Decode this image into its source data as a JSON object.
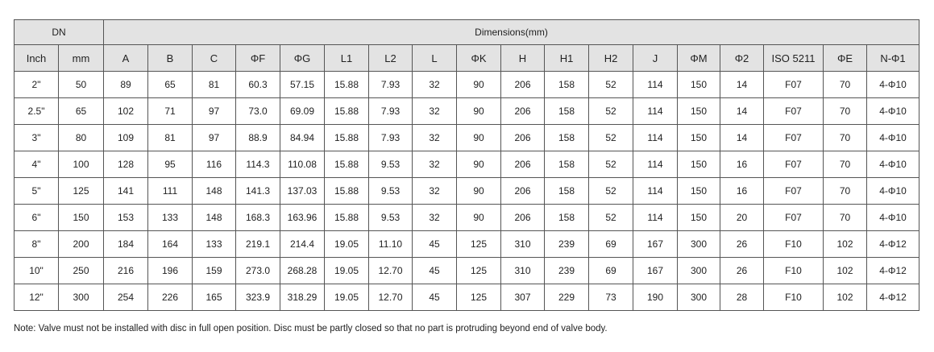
{
  "table": {
    "group_headers": [
      {
        "text": "DN",
        "span": 2
      },
      {
        "text": "Dimensions(mm)",
        "span": 18
      }
    ],
    "columns": [
      "Inch",
      "mm",
      "A",
      "B",
      "C",
      "ΦF",
      "ΦG",
      "L1",
      "L2",
      "L",
      "ΦK",
      "H",
      "H1",
      "H2",
      "J",
      "ΦM",
      "Φ2",
      "ISO 5211",
      "ΦE",
      "N-Φ1"
    ],
    "rows": [
      [
        "2\"",
        "50",
        "89",
        "65",
        "81",
        "60.3",
        "57.15",
        "15.88",
        "7.93",
        "32",
        "90",
        "206",
        "158",
        "52",
        "114",
        "150",
        "14",
        "F07",
        "70",
        "4-Φ10"
      ],
      [
        "2.5\"",
        "65",
        "102",
        "71",
        "97",
        "73.0",
        "69.09",
        "15.88",
        "7.93",
        "32",
        "90",
        "206",
        "158",
        "52",
        "114",
        "150",
        "14",
        "F07",
        "70",
        "4-Φ10"
      ],
      [
        "3\"",
        "80",
        "109",
        "81",
        "97",
        "88.9",
        "84.94",
        "15.88",
        "7.93",
        "32",
        "90",
        "206",
        "158",
        "52",
        "114",
        "150",
        "14",
        "F07",
        "70",
        "4-Φ10"
      ],
      [
        "4\"",
        "100",
        "128",
        "95",
        "116",
        "114.3",
        "110.08",
        "15.88",
        "9.53",
        "32",
        "90",
        "206",
        "158",
        "52",
        "114",
        "150",
        "16",
        "F07",
        "70",
        "4-Φ10"
      ],
      [
        "5\"",
        "125",
        "141",
        "111",
        "148",
        "141.3",
        "137.03",
        "15.88",
        "9.53",
        "32",
        "90",
        "206",
        "158",
        "52",
        "114",
        "150",
        "16",
        "F07",
        "70",
        "4-Φ10"
      ],
      [
        "6\"",
        "150",
        "153",
        "133",
        "148",
        "168.3",
        "163.96",
        "15.88",
        "9.53",
        "32",
        "90",
        "206",
        "158",
        "52",
        "114",
        "150",
        "20",
        "F07",
        "70",
        "4-Φ10"
      ],
      [
        "8\"",
        "200",
        "184",
        "164",
        "133",
        "219.1",
        "214.4",
        "19.05",
        "11.10",
        "45",
        "125",
        "310",
        "239",
        "69",
        "167",
        "300",
        "26",
        "F10",
        "102",
        "4-Φ12"
      ],
      [
        "10\"",
        "250",
        "216",
        "196",
        "159",
        "273.0",
        "268.28",
        "19.05",
        "12.70",
        "45",
        "125",
        "310",
        "239",
        "69",
        "167",
        "300",
        "26",
        "F10",
        "102",
        "4-Φ12"
      ],
      [
        "12\"",
        "300",
        "254",
        "226",
        "165",
        "323.9",
        "318.29",
        "19.05",
        "12.70",
        "45",
        "125",
        "307",
        "229",
        "73",
        "190",
        "300",
        "28",
        "F10",
        "102",
        "4-Φ12"
      ]
    ]
  },
  "note": "Note: Valve must not be installed with disc in full open position. Disc must be partly closed so that no part is protruding beyond end of valve body."
}
